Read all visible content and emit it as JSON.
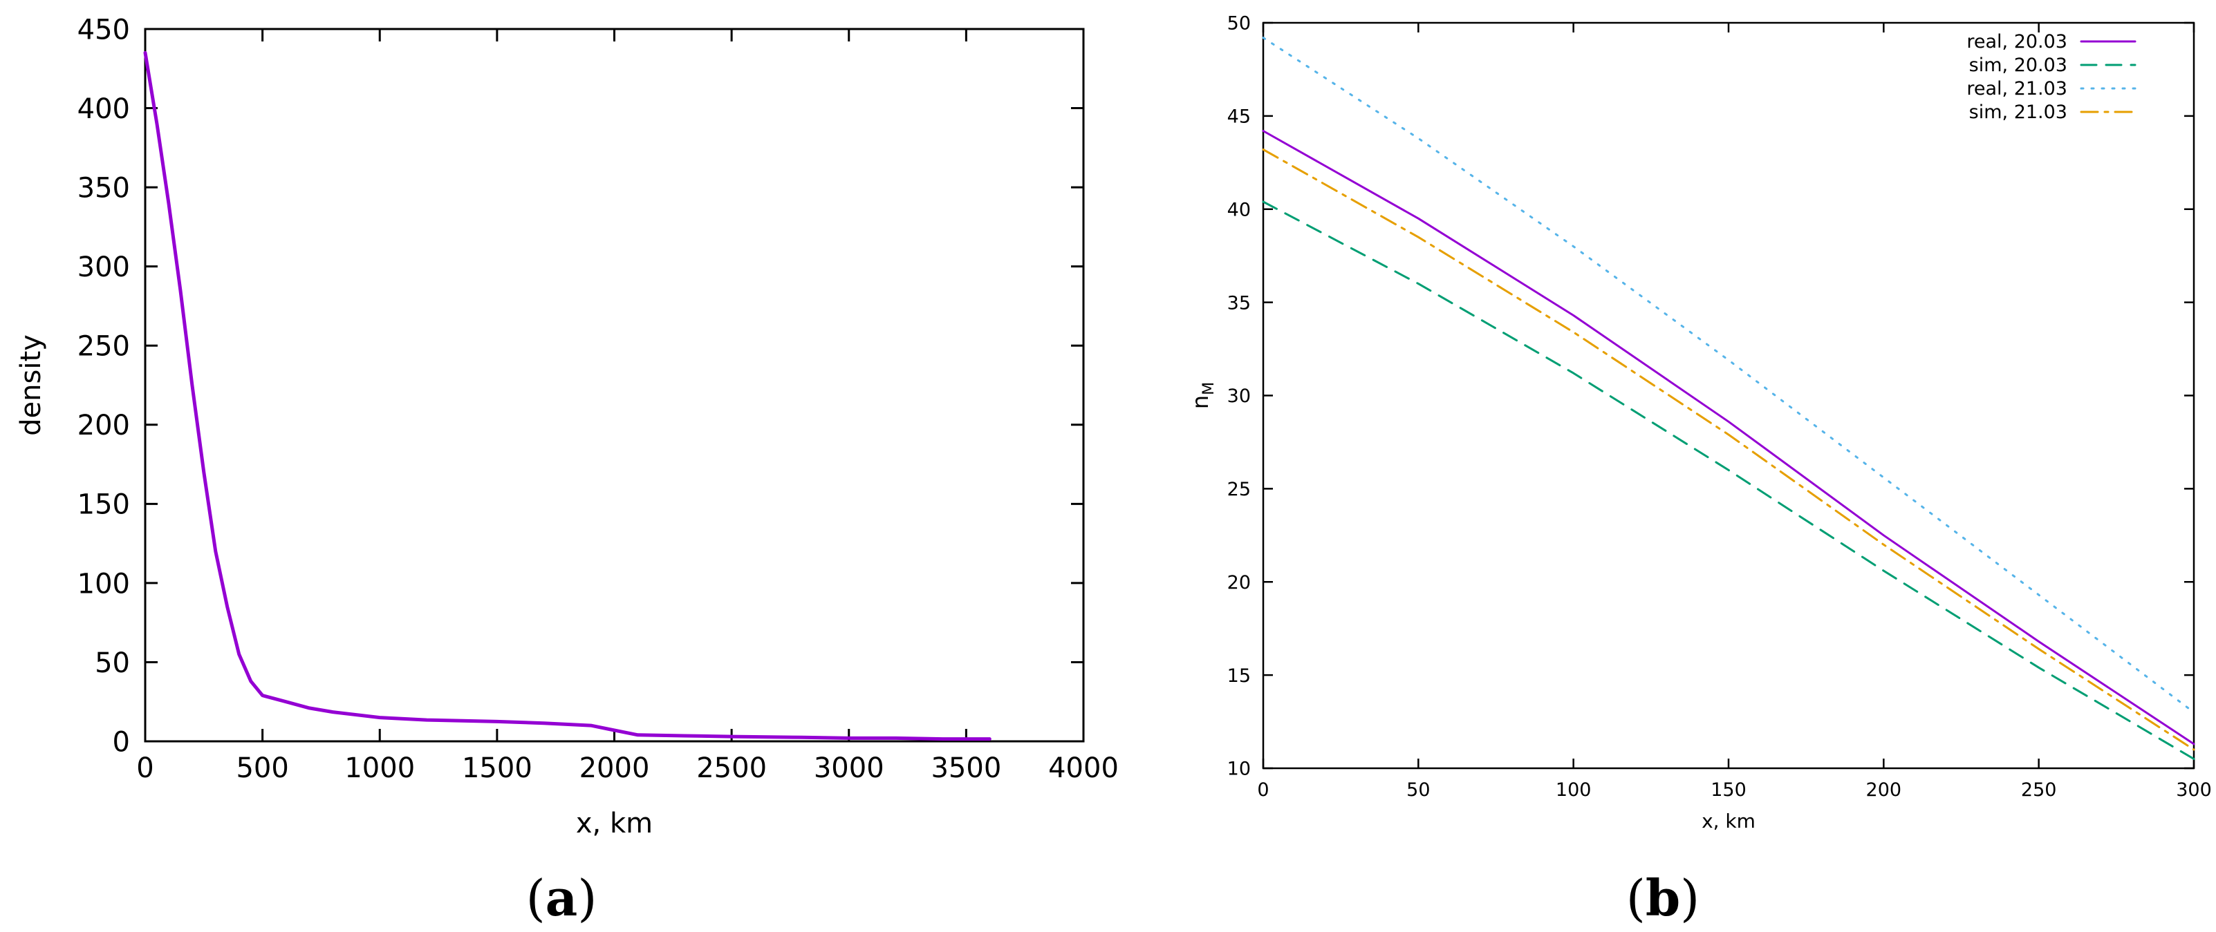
{
  "chart_data": [
    {
      "panel": "(a)",
      "type": "line",
      "xlabel": "x, km",
      "ylabel": "density",
      "xlim": [
        0,
        4000
      ],
      "ylim": [
        0,
        450
      ],
      "xticks": [
        0,
        500,
        1000,
        1500,
        2000,
        2500,
        3000,
        3500,
        4000
      ],
      "yticks": [
        0,
        50,
        100,
        150,
        200,
        250,
        300,
        350,
        400,
        450
      ],
      "grid": false,
      "series": [
        {
          "color": "#9400d3",
          "style": "solid",
          "x": [
            0,
            50,
            100,
            150,
            200,
            250,
            300,
            350,
            400,
            450,
            500,
            600,
            700,
            800,
            1000,
            1200,
            1500,
            1700,
            1900,
            2000,
            2100,
            2300,
            2500,
            2800,
            3000,
            3200,
            3400,
            3600
          ],
          "y": [
            435,
            390,
            340,
            285,
            225,
            170,
            120,
            85,
            55,
            38,
            29,
            25,
            21,
            18.5,
            15,
            13.5,
            12.5,
            11.5,
            10,
            7,
            4,
            3.5,
            3,
            2.5,
            2,
            2,
            1.5,
            1.5
          ]
        }
      ]
    },
    {
      "panel": "(b)",
      "type": "line",
      "xlabel": "x, km",
      "ylabel": "n",
      "ylabel_sub": "M",
      "xlim": [
        0,
        300
      ],
      "ylim": [
        10,
        50
      ],
      "xticks": [
        0,
        50,
        100,
        150,
        200,
        250,
        300
      ],
      "yticks": [
        10,
        15,
        20,
        25,
        30,
        35,
        40,
        45,
        50
      ],
      "grid": false,
      "legend": "top-right",
      "series": [
        {
          "name": "real, 20.03",
          "color": "#9400d3",
          "style": "solid",
          "x": [
            0,
            50,
            100,
            150,
            200,
            250,
            300
          ],
          "y": [
            44.2,
            39.5,
            34.3,
            28.6,
            22.5,
            16.8,
            11.3
          ]
        },
        {
          "name": "sim, 20.03",
          "color": "#009e73",
          "style": "dashed",
          "x": [
            0,
            50,
            100,
            150,
            200,
            250,
            300
          ],
          "y": [
            40.4,
            36,
            31.2,
            26,
            20.6,
            15.4,
            10.5
          ]
        },
        {
          "name": "real, 21.03",
          "color": "#56b4e9",
          "style": "dotted",
          "x": [
            0,
            50,
            100,
            150,
            200,
            250,
            300
          ],
          "y": [
            49.2,
            43.8,
            38,
            31.9,
            25.6,
            19.3,
            13
          ]
        },
        {
          "name": "sim, 21.03",
          "color": "#e69f00",
          "style": "dashdot",
          "x": [
            0,
            50,
            100,
            150,
            200,
            250,
            300
          ],
          "y": [
            43.2,
            38.5,
            33.4,
            27.9,
            22,
            16.4,
            11
          ]
        }
      ]
    }
  ],
  "captions": {
    "a": {
      "open": "(",
      "letter": "a",
      "close": ")"
    },
    "b": {
      "open": "(",
      "letter": "b",
      "close": ")"
    }
  }
}
